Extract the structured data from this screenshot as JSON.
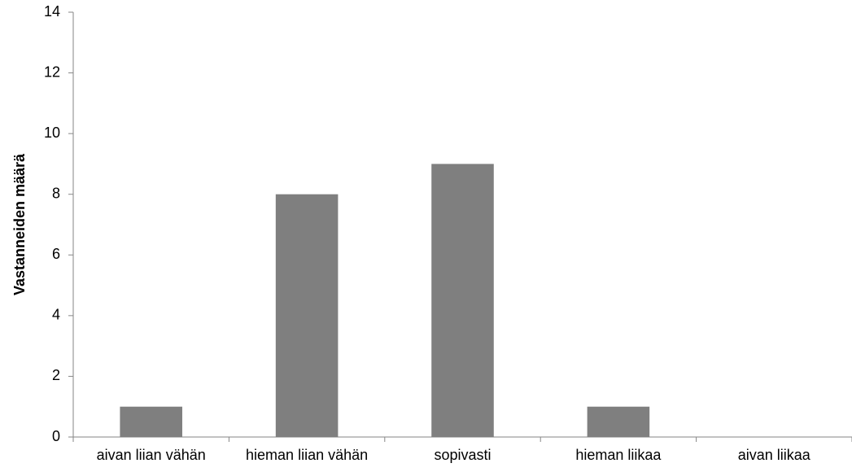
{
  "chart_data": {
    "type": "bar",
    "categories": [
      "aivan liian vähän",
      "hieman liian vähän",
      "sopivasti",
      "hieman liikaa",
      "aivan liikaa"
    ],
    "values": [
      1,
      8,
      9,
      1,
      0
    ],
    "title": "",
    "xlabel": "",
    "ylabel": "Vastanneiden määrä",
    "ylim": [
      0,
      14
    ],
    "yticks": [
      "0",
      "2",
      "4",
      "6",
      "8",
      "10",
      "12",
      "14"
    ],
    "grid": false,
    "bar_color": "#7f7f7f",
    "axis_color": "#868686"
  }
}
